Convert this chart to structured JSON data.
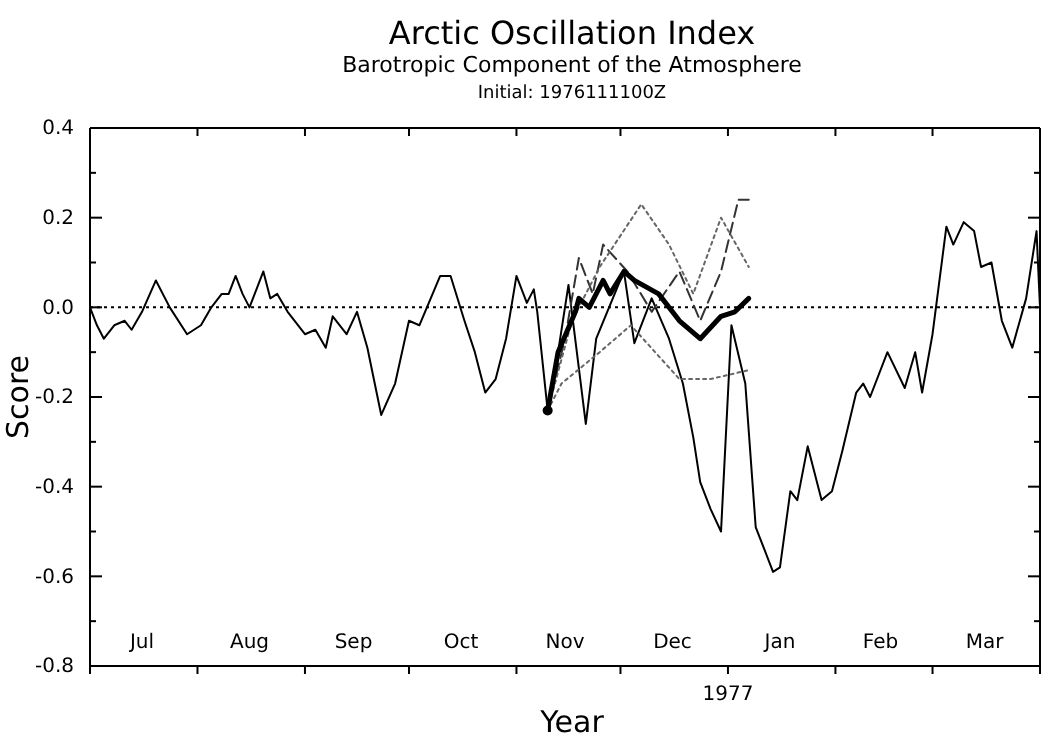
{
  "chart_data": {
    "type": "line",
    "title": "Arctic Oscillation Index",
    "subtitle": "Barotropic Component of the Atmosphere",
    "annotations": [
      "Initial: 1976111100Z",
      "1977"
    ],
    "xlabel": "Year",
    "ylabel": "Score",
    "xlim": [
      "1976-07-01",
      "1977-04-01"
    ],
    "xticks": [
      {
        "value": "1976-07-01",
        "label": null
      },
      {
        "value": "1976-07-16",
        "label": "Jul"
      },
      {
        "value": "1976-08-01",
        "label": null
      },
      {
        "value": "1976-08-16",
        "label": "Aug"
      },
      {
        "value": "1976-09-01",
        "label": null
      },
      {
        "value": "1976-09-15",
        "label": "Sep"
      },
      {
        "value": "1976-10-01",
        "label": null
      },
      {
        "value": "1976-10-16",
        "label": "Oct"
      },
      {
        "value": "1976-11-01",
        "label": null
      },
      {
        "value": "1976-11-15",
        "label": "Nov"
      },
      {
        "value": "1976-12-01",
        "label": null
      },
      {
        "value": "1976-12-16",
        "label": "Dec"
      },
      {
        "value": "1977-01-01",
        "label": null
      },
      {
        "value": "1977-01-16",
        "label": "Jan"
      },
      {
        "value": "1977-02-01",
        "label": null
      },
      {
        "value": "1977-02-14",
        "label": "Feb"
      },
      {
        "value": "1977-03-01",
        "label": null
      },
      {
        "value": "1977-03-16",
        "label": "Mar"
      },
      {
        "value": "1977-04-01",
        "label": null
      }
    ],
    "ylim": [
      -0.8,
      0.4
    ],
    "yticks": [
      -0.8,
      {
        "value": -0.7,
        "label": null
      },
      -0.6,
      {
        "value": -0.5,
        "label": null
      },
      -0.4,
      {
        "value": -0.3,
        "label": null
      },
      -0.2,
      {
        "value": -0.1,
        "label": null
      },
      {
        "value": 0,
        "label": "0.0"
      },
      {
        "value": 0.1,
        "label": null
      },
      0.2,
      {
        "value": 0.3,
        "label": null
      },
      0.4
    ],
    "grid": false,
    "ref_lines": [
      {
        "axis": "y",
        "value": 0,
        "label": null,
        "color": "#000000",
        "line_style": "dotted"
      }
    ],
    "series": [
      {
        "color": "#000000",
        "line_style": "solid",
        "x": [
          "1976-07-01",
          "1976-07-03",
          "1976-07-05",
          "1976-07-08",
          "1976-07-11",
          "1976-07-13",
          "1976-07-16",
          "1976-07-20",
          "1976-07-24",
          "1976-07-29",
          "1976-08-02",
          "1976-08-05",
          "1976-08-08",
          "1976-08-10",
          "1976-08-12",
          "1976-08-14",
          "1976-08-16",
          "1976-08-20",
          "1976-08-22",
          "1976-08-24",
          "1976-08-27",
          "1976-09-01",
          "1976-09-04",
          "1976-09-07",
          "1976-09-09",
          "1976-09-13",
          "1976-09-16",
          "1976-09-19",
          "1976-09-23",
          "1976-09-27",
          "1976-10-01",
          "1976-10-04",
          "1976-10-10",
          "1976-10-13",
          "1976-10-17",
          "1976-10-20",
          "1976-10-23",
          "1976-10-26",
          "1976-10-29",
          "1976-11-01",
          "1976-11-04",
          "1976-11-06",
          "1976-11-07",
          "1976-11-10",
          "1976-11-13",
          "1976-11-16",
          "1976-11-21",
          "1976-11-24",
          "1976-12-02",
          "1976-12-05",
          "1976-12-10",
          "1976-12-15",
          "1976-12-19",
          "1976-12-22",
          "1976-12-24",
          "1976-12-27",
          "1976-12-30",
          "1977-01-02",
          "1977-01-06",
          "1977-01-09",
          "1977-01-14",
          "1977-01-16",
          "1977-01-19",
          "1977-01-21",
          "1977-01-24",
          "1977-01-28",
          "1977-01-31",
          "1977-02-03",
          "1977-02-07",
          "1977-02-09",
          "1977-02-11",
          "1977-02-16",
          "1977-02-21",
          "1977-02-24",
          "1977-02-26",
          "1977-03-01",
          "1977-03-05",
          "1977-03-07",
          "1977-03-10",
          "1977-03-13",
          "1977-03-15",
          "1977-03-18",
          "1977-03-21",
          "1977-03-24",
          "1977-03-28",
          "1977-03-31",
          "1977-04-01"
        ],
        "values": [
          0.0,
          -0.04,
          -0.07,
          -0.04,
          -0.03,
          -0.05,
          -0.01,
          0.06,
          0.0,
          -0.06,
          -0.04,
          0.0,
          0.03,
          0.03,
          0.07,
          0.03,
          0.0,
          0.08,
          0.02,
          0.03,
          -0.01,
          -0.06,
          -0.05,
          -0.09,
          -0.02,
          -0.06,
          -0.01,
          -0.09,
          -0.24,
          -0.17,
          -0.03,
          -0.04,
          0.07,
          0.07,
          -0.03,
          -0.1,
          -0.19,
          -0.16,
          -0.07,
          0.07,
          0.01,
          0.04,
          -0.01,
          -0.23,
          -0.1,
          0.05,
          -0.26,
          -0.07,
          0.08,
          -0.08,
          0.02,
          -0.07,
          -0.17,
          -0.29,
          -0.39,
          -0.45,
          -0.5,
          -0.04,
          -0.17,
          -0.49,
          -0.59,
          -0.58,
          -0.41,
          -0.43,
          -0.31,
          -0.43,
          -0.41,
          -0.32,
          -0.19,
          -0.17,
          -0.2,
          -0.1,
          -0.18,
          -0.1,
          -0.19,
          -0.06,
          0.18,
          0.14,
          0.19,
          0.17,
          0.09,
          0.1,
          -0.03,
          -0.09,
          0.02,
          0.17,
          0.0
        ]
      },
      {
        "color": "#000000",
        "line_style": "solid",
        "x": [
          "1976-11-10",
          "1976-11-13",
          "1976-11-18",
          "1976-11-19",
          "1976-11-22",
          "1976-11-26",
          "1976-11-28",
          "1976-12-02",
          "1976-12-05",
          "1976-12-12",
          "1976-12-18",
          "1976-12-24",
          "1976-12-30",
          "1977-01-03",
          "1977-01-07"
        ],
        "values": [
          -0.23,
          -0.1,
          -0.01,
          0.02,
          0.0,
          0.06,
          0.03,
          0.08,
          0.06,
          0.03,
          -0.03,
          -0.07,
          -0.02,
          -0.01,
          0.02
        ]
      },
      {
        "color": "#333333",
        "line_style": "dashed",
        "x": [
          "1976-11-10",
          "1976-11-15",
          "1976-11-19",
          "1976-11-23",
          "1976-11-26",
          "1976-12-03",
          "1976-12-10",
          "1976-12-18",
          "1976-12-24",
          "1976-12-30",
          "1977-01-04",
          "1977-01-07"
        ],
        "values": [
          -0.23,
          -0.07,
          0.11,
          0.03,
          0.14,
          0.08,
          -0.01,
          0.08,
          -0.03,
          0.08,
          0.24,
          0.24
        ]
      },
      {
        "color": "#666666",
        "line_style": "dotted",
        "x": [
          "1976-11-10",
          "1976-11-17",
          "1976-11-25",
          "1976-12-07",
          "1976-12-15",
          "1976-12-22",
          "1976-12-30",
          "1977-01-07"
        ],
        "values": [
          -0.23,
          -0.03,
          0.09,
          0.23,
          0.14,
          0.03,
          0.2,
          0.09
        ]
      },
      {
        "color": "#666666",
        "line_style": "dotted",
        "x": [
          "1976-11-10",
          "1976-11-14",
          "1976-11-25",
          "1976-12-04",
          "1976-12-18",
          "1976-12-27",
          "1977-01-07"
        ],
        "values": [
          -0.23,
          -0.17,
          -0.1,
          -0.04,
          -0.16,
          -0.16,
          -0.14
        ]
      }
    ]
  }
}
